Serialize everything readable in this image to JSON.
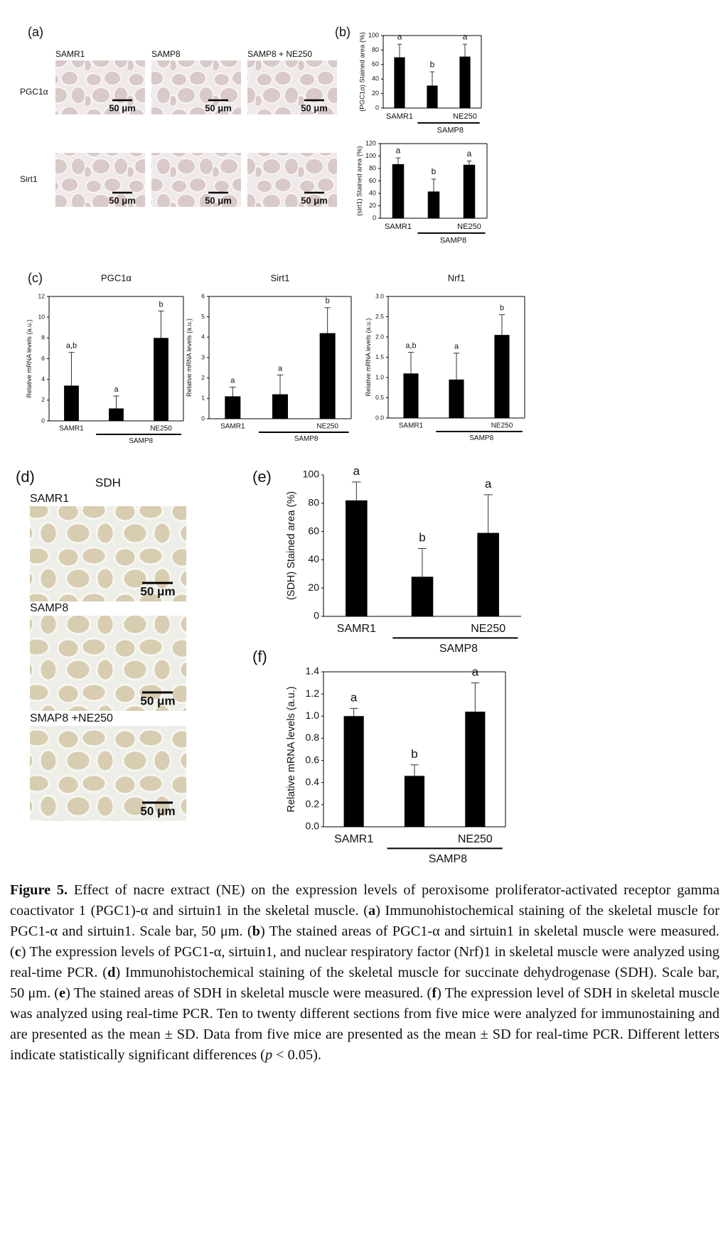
{
  "panel_labels": [
    "(a)",
    "(b)",
    "(c)",
    "(d)",
    "(e)",
    "(f)"
  ],
  "panel_a": {
    "columns": [
      "SAMR1",
      "SAMP8",
      "SAMP8 + NE250"
    ],
    "rows": [
      "PGC1α",
      "Sirt1"
    ],
    "scale_bar": "50 μm"
  },
  "panel_d": {
    "title": "SDH",
    "rows": [
      "SAMR1",
      "SAMP8",
      "SMAP8 +NE250"
    ],
    "scale_bar": "50 μm"
  },
  "chart_data": [
    {
      "type": "bar",
      "ylabel": "(PGC1α) Stained area (%)",
      "categories": [
        "SAMR1",
        null,
        "NE250"
      ],
      "group": "SAMP8",
      "values": [
        70,
        31,
        71
      ],
      "errors": [
        18,
        19,
        17
      ],
      "letters": [
        "a",
        "b",
        "a"
      ],
      "color": "#000000",
      "ylim": [
        0,
        100
      ],
      "yticks": [
        0,
        20,
        40,
        60,
        80,
        100
      ],
      "frame": true
    },
    {
      "type": "bar",
      "ylabel": "(sirt1) Stained area (%)",
      "categories": [
        "SAMR1",
        null,
        "NE250"
      ],
      "group": "SAMP8",
      "values": [
        87,
        43,
        86
      ],
      "errors": [
        10,
        20,
        6
      ],
      "letters": [
        "a",
        "b",
        "a"
      ],
      "color": "#000000",
      "ylim": [
        0,
        120
      ],
      "yticks": [
        0,
        20,
        40,
        60,
        80,
        100,
        120
      ],
      "frame": true
    },
    {
      "type": "bar",
      "title": "PGC1α",
      "ylabel": "Relative mRNA levels (a.u.)",
      "categories": [
        "SAMR1",
        null,
        "NE250"
      ],
      "group": "SAMP8",
      "values": [
        3.4,
        1.2,
        8.0
      ],
      "errors": [
        3.2,
        1.2,
        2.6
      ],
      "letters": [
        "a,b",
        "a",
        "b"
      ],
      "color": "#000000",
      "ylim": [
        0,
        12
      ],
      "yticks": [
        0,
        2,
        4,
        6,
        8,
        10,
        12
      ],
      "frame": true
    },
    {
      "type": "bar",
      "title": "Sirt1",
      "ylabel": "Relative mRNA levels (a.u.)",
      "categories": [
        "SAMR1",
        null,
        "NE250"
      ],
      "group": "SAMP8",
      "values": [
        1.1,
        1.2,
        4.2
      ],
      "errors": [
        0.45,
        0.95,
        1.25
      ],
      "letters": [
        "a",
        "a",
        "b"
      ],
      "color": "#000000",
      "ylim": [
        0,
        6
      ],
      "yticks": [
        0,
        1,
        2,
        3,
        4,
        5,
        6
      ],
      "frame": true
    },
    {
      "type": "bar",
      "title": "Nrf1",
      "ylabel": "Relative mRNA levels (a.u.)",
      "categories": [
        "SAMR1",
        null,
        "NE250"
      ],
      "group": "SAMP8",
      "values": [
        1.1,
        0.95,
        2.05
      ],
      "errors": [
        0.52,
        0.65,
        0.5
      ],
      "letters": [
        "a,b",
        "a",
        "b"
      ],
      "color": "#000000",
      "ylim": [
        0,
        3
      ],
      "yticks": [
        {
          "value": 0,
          "label": "0.0"
        },
        0.5,
        {
          "value": 1,
          "label": "1.0"
        },
        1.5,
        {
          "value": 2,
          "label": "2.0"
        },
        2.5,
        {
          "value": 3,
          "label": "3.0"
        }
      ],
      "frame": true
    },
    {
      "type": "bar",
      "ylabel": "(SDH) Stained area (%)",
      "categories": [
        "SAMR1",
        null,
        "NE250"
      ],
      "group": "SAMP8",
      "values": [
        82,
        28,
        59
      ],
      "errors": [
        13,
        20,
        27
      ],
      "letters": [
        "a",
        "b",
        "a"
      ],
      "color": "#000000",
      "ylim": [
        0,
        100
      ],
      "yticks": [
        0,
        20,
        40,
        60,
        80,
        100
      ],
      "frame": false
    },
    {
      "type": "bar",
      "ylabel": "Relative mRNA levels (a.u.)",
      "categories": [
        "SAMR1",
        null,
        "NE250"
      ],
      "group": "SAMP8",
      "values": [
        1.0,
        0.46,
        1.04
      ],
      "errors": [
        0.07,
        0.1,
        0.26
      ],
      "letters": [
        "a",
        "b",
        "a"
      ],
      "color": "#000000",
      "ylim": [
        0,
        1.4
      ],
      "yticks": [
        {
          "value": 0,
          "label": "0.0"
        },
        0.2,
        0.4,
        0.6,
        0.8,
        {
          "value": 1,
          "label": "1.0"
        },
        1.2,
        1.4
      ],
      "frame": true
    }
  ],
  "caption": [
    "Figure 5.",
    " Effect of nacre extract (NE) on the expression levels of peroxisome proliferator-activated receptor gamma coactivator 1 (PGC1)-α and sirtuin1 in the skeletal muscle. (",
    "a",
    ") Immunohistochemical staining of the skeletal muscle for PGC1-α and sirtuin1. Scale bar, 50 μm. (",
    "b",
    ") The stained areas of PGC1-α and sirtuin1 in skeletal muscle were measured. (",
    "c",
    ") The expression levels of PGC1-α, sirtuin1, and nuclear respiratory factor (Nrf)1 in skeletal muscle were analyzed using real-time PCR. (",
    "d",
    ") Immunohistochemical staining of the skeletal muscle for succinate dehydrogenase (SDH). Scale bar, 50 μm. (",
    "e",
    ") The stained areas of SDH in skeletal muscle were measured. (",
    "f",
    ") The expression level of SDH in skeletal muscle was analyzed using real-time PCR. Ten to twenty different sections from five mice were analyzed for immunostaining and are presented as the mean ± SD. Data from five mice are presented as the mean ± SD for real-time PCR. Different letters indicate statistically significant differences (",
    "p",
    " < 0.05)."
  ]
}
